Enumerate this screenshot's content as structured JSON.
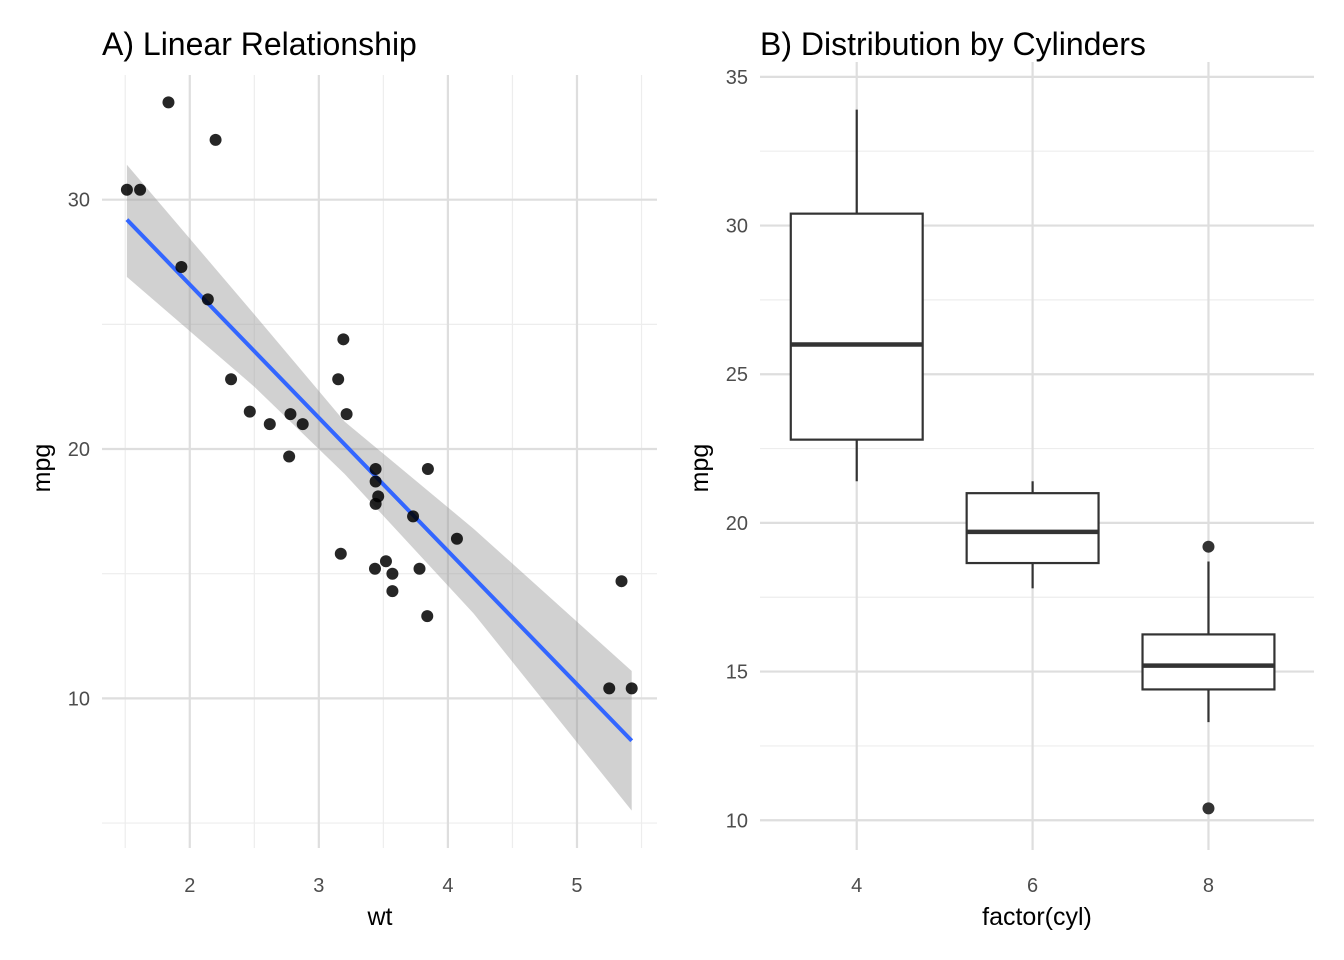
{
  "chart_data": [
    {
      "type": "scatter",
      "title": "A) Linear Relationship",
      "xlabel": "wt",
      "ylabel": "mpg",
      "xlim": [
        1.32,
        5.62
      ],
      "ylim": [
        4.0,
        35.0
      ],
      "xticks": [
        "2",
        "3",
        "4",
        "5"
      ],
      "xtick_values": [
        2,
        3,
        4,
        5
      ],
      "yticks": [
        "10",
        "20",
        "30"
      ],
      "ytick_values": [
        10,
        20,
        30
      ],
      "minor_x": [
        1.5,
        2.5,
        3.5,
        4.5,
        5.5
      ],
      "minor_y": [
        5,
        15,
        25
      ],
      "grid": true,
      "points": [
        {
          "x": 2.62,
          "y": 21.0
        },
        {
          "x": 2.875,
          "y": 21.0
        },
        {
          "x": 2.32,
          "y": 22.8
        },
        {
          "x": 3.215,
          "y": 21.4
        },
        {
          "x": 3.44,
          "y": 18.7
        },
        {
          "x": 3.46,
          "y": 18.1
        },
        {
          "x": 3.57,
          "y": 14.3
        },
        {
          "x": 3.19,
          "y": 24.4
        },
        {
          "x": 3.15,
          "y": 22.8
        },
        {
          "x": 3.44,
          "y": 19.2
        },
        {
          "x": 3.44,
          "y": 17.8
        },
        {
          "x": 4.07,
          "y": 16.4
        },
        {
          "x": 3.73,
          "y": 17.3
        },
        {
          "x": 3.78,
          "y": 15.2
        },
        {
          "x": 5.25,
          "y": 10.4
        },
        {
          "x": 5.424,
          "y": 10.4
        },
        {
          "x": 5.345,
          "y": 14.7
        },
        {
          "x": 2.2,
          "y": 32.4
        },
        {
          "x": 1.615,
          "y": 30.4
        },
        {
          "x": 1.835,
          "y": 33.9
        },
        {
          "x": 2.465,
          "y": 21.5
        },
        {
          "x": 3.52,
          "y": 15.5
        },
        {
          "x": 3.435,
          "y": 15.2
        },
        {
          "x": 3.84,
          "y": 13.3
        },
        {
          "x": 3.845,
          "y": 19.2
        },
        {
          "x": 1.935,
          "y": 27.3
        },
        {
          "x": 2.14,
          "y": 26.0
        },
        {
          "x": 1.513,
          "y": 30.4
        },
        {
          "x": 3.17,
          "y": 15.8
        },
        {
          "x": 2.77,
          "y": 19.7
        },
        {
          "x": 3.57,
          "y": 15.0
        },
        {
          "x": 2.78,
          "y": 21.4
        }
      ],
      "fit_line": {
        "x": [
          1.513,
          5.424
        ],
        "y": [
          29.2,
          8.3
        ],
        "color": "#3366FF"
      },
      "confidence_band": {
        "x": [
          1.513,
          2.5,
          3.2,
          4.2,
          5.424
        ],
        "lower": [
          26.9,
          22.5,
          19.0,
          13.4,
          5.5
        ],
        "upper": [
          31.4,
          25.4,
          21.1,
          16.8,
          11.1
        ],
        "color": "#999999"
      }
    },
    {
      "type": "box",
      "title": "B) Distribution by Cylinders",
      "xlabel": "factor(cyl)",
      "ylabel": "mpg",
      "categories": [
        "4",
        "6",
        "8"
      ],
      "category_positions": [
        4,
        6,
        8
      ],
      "xlim": [
        2.9,
        9.2
      ],
      "ylim": [
        9.0,
        35.5
      ],
      "yticks": [
        "10",
        "15",
        "20",
        "25",
        "30",
        "35"
      ],
      "ytick_values": [
        10,
        15,
        20,
        25,
        30,
        35
      ],
      "minor_y": [
        12.5,
        17.5,
        22.5,
        27.5,
        32.5
      ],
      "minor_x": [
        5,
        7
      ],
      "grid": true,
      "boxes": [
        {
          "category": "4",
          "whisker_low": 21.4,
          "q1": 22.8,
          "median": 26.0,
          "q3": 30.4,
          "whisker_high": 33.9,
          "outliers": []
        },
        {
          "category": "6",
          "whisker_low": 17.8,
          "q1": 18.65,
          "median": 19.7,
          "q3": 21.0,
          "whisker_high": 21.4,
          "outliers": []
        },
        {
          "category": "8",
          "whisker_low": 13.3,
          "q1": 14.4,
          "median": 15.2,
          "q3": 16.25,
          "whisker_high": 18.7,
          "outliers": [
            19.2,
            10.4
          ]
        }
      ]
    }
  ]
}
